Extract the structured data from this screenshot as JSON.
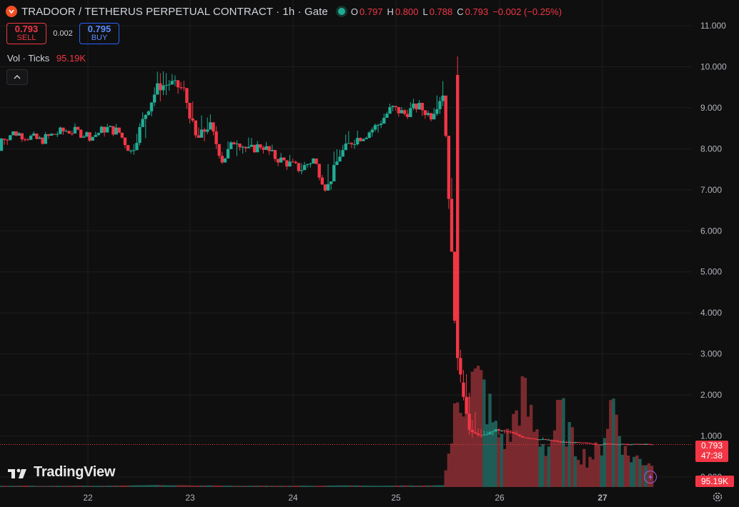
{
  "header": {
    "symbol_title": "TRADOOR / TETHERUS PERPETUAL CONTRACT · 1h · Gate",
    "ohlc": {
      "o_label": "O",
      "o_value": "0.797",
      "h_label": "H",
      "h_value": "0.800",
      "l_label": "L",
      "l_value": "0.788",
      "c_label": "C",
      "c_value": "0.793",
      "change": "−0.002 (−0.25%)"
    }
  },
  "trade": {
    "sell_price": "0.793",
    "sell_label": "SELL",
    "spread": "0.002",
    "buy_price": "0.795",
    "buy_label": "BUY"
  },
  "volume_legend": {
    "label": "Vol · Ticks",
    "value": "95.19K"
  },
  "branding": {
    "name": "TradingView"
  },
  "price_scale_tag": {
    "price": "0.793",
    "countdown": "47:38"
  },
  "volume_scale_tag": {
    "value": "95.19K"
  },
  "icons": {
    "symbol_logo": "gate-logo-icon",
    "live": "live-status-icon",
    "collapse": "chevron-up-icon",
    "flash": "flash-icon",
    "settings": "gear-icon"
  },
  "colors": {
    "background": "#0f0f0f",
    "up": "#22ab94",
    "down": "#f23645",
    "grid": "#1e1e1e",
    "vol_up": "#1f5c55",
    "vol_down": "#7a2a2e"
  },
  "chart_data": {
    "type": "candlestick",
    "y_axis_ticks": [
      "11.000",
      "10.000",
      "9.000",
      "8.000",
      "7.000",
      "6.000",
      "5.000",
      "4.000",
      "3.000",
      "2.000",
      "1.000",
      "0.000"
    ],
    "x_axis_ticks": [
      "22",
      "23",
      "24",
      "25",
      "26",
      "27"
    ],
    "ylim": [
      0,
      11
    ],
    "last_price": 0.793,
    "grid": true,
    "series_shape": [
      [
        0,
        7.95,
        8.25,
        8.3,
        7.8
      ],
      [
        2,
        8.25,
        8.4,
        8.45,
        8.2
      ],
      [
        4,
        8.4,
        8.3,
        8.5,
        8.25
      ],
      [
        6,
        8.3,
        8.2,
        8.4,
        8.1
      ],
      [
        8,
        8.2,
        8.35,
        8.5,
        8.15
      ],
      [
        10,
        8.35,
        8.45,
        8.6,
        8.3
      ],
      [
        12,
        8.45,
        8.4,
        8.55,
        8.35
      ],
      [
        14,
        8.4,
        8.3,
        8.45,
        8.2
      ],
      [
        16,
        8.3,
        8.5,
        8.65,
        8.25
      ],
      [
        18,
        8.5,
        8.42,
        8.6,
        8.38
      ],
      [
        20,
        8.42,
        7.9,
        8.45,
        7.6
      ],
      [
        22,
        7.9,
        8.8,
        9.2,
        7.7
      ],
      [
        24,
        8.8,
        9.5,
        10.4,
        8.7
      ],
      [
        26,
        9.5,
        9.6,
        9.9,
        9.3
      ],
      [
        28,
        9.6,
        9.45,
        9.8,
        9.2
      ],
      [
        30,
        9.45,
        8.2,
        9.7,
        7.6
      ],
      [
        32,
        8.2,
        8.6,
        9.1,
        8.0
      ],
      [
        34,
        8.6,
        7.7,
        8.8,
        7.6
      ],
      [
        36,
        7.7,
        8.25,
        8.4,
        7.6
      ],
      [
        38,
        8.25,
        7.95,
        8.35,
        7.8
      ],
      [
        40,
        7.95,
        8.1,
        8.25,
        7.85
      ],
      [
        42,
        8.1,
        7.8,
        8.2,
        7.6
      ],
      [
        44,
        7.8,
        7.65,
        7.95,
        7.5
      ],
      [
        46,
        7.65,
        7.5,
        7.8,
        7.3
      ],
      [
        48,
        7.5,
        7.75,
        7.85,
        7.4
      ],
      [
        50,
        7.75,
        7.0,
        7.9,
        6.9
      ],
      [
        52,
        7.0,
        7.85,
        8.3,
        6.85
      ],
      [
        54,
        7.85,
        8.2,
        9.0,
        7.8
      ],
      [
        56,
        8.2,
        8.35,
        8.5,
        8.1
      ],
      [
        58,
        8.35,
        8.6,
        8.8,
        8.2
      ],
      [
        60,
        8.6,
        9.0,
        9.2,
        8.5
      ],
      [
        62,
        9.0,
        8.85,
        9.3,
        8.7
      ],
      [
        64,
        8.85,
        9.05,
        9.2,
        8.7
      ],
      [
        66,
        9.05,
        8.8,
        9.1,
        8.6
      ],
      [
        68,
        8.8,
        9.4,
        10.25,
        8.7
      ],
      [
        70,
        9.4,
        2.9,
        9.8,
        2.6
      ],
      [
        72,
        2.9,
        1.1,
        3.1,
        0.8
      ],
      [
        74,
        1.1,
        1.0,
        1.2,
        0.9
      ],
      [
        76,
        1.0,
        1.15,
        1.25,
        0.95
      ],
      [
        78,
        1.15,
        1.1,
        1.2,
        1.0
      ],
      [
        80,
        1.1,
        0.98,
        1.15,
        0.9
      ],
      [
        82,
        0.98,
        0.93,
        1.0,
        0.88
      ],
      [
        84,
        0.93,
        0.9,
        0.98,
        0.86
      ],
      [
        86,
        0.9,
        0.85,
        0.93,
        0.82
      ],
      [
        88,
        0.85,
        0.84,
        0.88,
        0.8
      ],
      [
        90,
        0.84,
        0.82,
        0.86,
        0.8
      ],
      [
        92,
        0.82,
        0.8,
        0.85,
        0.78
      ],
      [
        94,
        0.8,
        0.81,
        0.83,
        0.78
      ],
      [
        96,
        0.81,
        0.79,
        0.83,
        0.77
      ],
      [
        98,
        0.79,
        0.797,
        0.81,
        0.77
      ],
      [
        100,
        0.797,
        0.793,
        0.8,
        0.788
      ]
    ],
    "volume_shape": [
      0.06,
      0.06,
      0.07,
      0.05,
      0.06,
      0.06,
      0.07,
      0.06,
      0.06,
      0.07,
      0.08,
      0.09,
      0.1,
      0.08,
      0.09,
      0.07,
      0.08,
      0.07,
      0.06,
      0.06,
      0.07,
      0.06,
      0.06,
      0.07,
      0.06,
      0.07,
      0.08,
      0.08,
      0.07,
      0.06,
      0.07,
      0.08,
      0.07,
      0.08,
      0.09,
      4.6,
      6.2,
      5.8,
      3.2,
      2.7,
      5.5,
      3.3,
      2.2,
      4.4,
      2.4,
      1.7,
      2.1,
      5.2,
      1.9,
      1.6,
      1.5
    ]
  }
}
